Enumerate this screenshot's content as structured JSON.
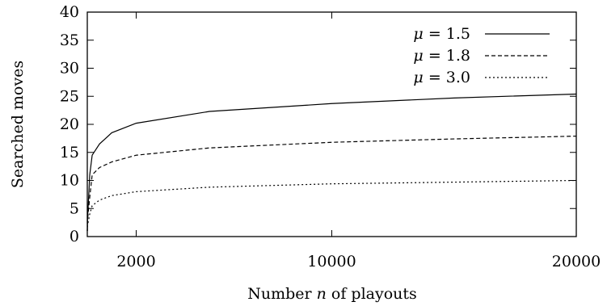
{
  "chart_data": {
    "type": "line",
    "xlabel": {
      "prefix": "Number ",
      "var": "n",
      "suffix": " of playouts"
    },
    "ylabel": "Searched moves",
    "xlim": [
      0,
      20000
    ],
    "ylim": [
      0,
      40
    ],
    "xticks": [
      2000,
      10000,
      20000
    ],
    "yticks": [
      0,
      5,
      10,
      15,
      20,
      25,
      30,
      35,
      40
    ],
    "grid": false,
    "legend_position": "top-right",
    "series": [
      {
        "name": {
          "var": "μ",
          "rest": " = 1.5"
        },
        "line_style": "solid",
        "x": [
          1,
          10,
          100,
          200,
          500,
          1000,
          2000,
          5000,
          10000,
          15000,
          20000
        ],
        "y": [
          1.0,
          3.0,
          11.0,
          14.5,
          16.5,
          18.5,
          20.2,
          22.3,
          23.7,
          24.7,
          25.4
        ]
      },
      {
        "name": {
          "var": "μ",
          "rest": " = 1.8"
        },
        "line_style": "dashed",
        "x": [
          1,
          10,
          100,
          200,
          500,
          1000,
          2000,
          5000,
          10000,
          15000,
          20000
        ],
        "y": [
          1.0,
          3.0,
          7.0,
          11.0,
          12.3,
          13.3,
          14.5,
          15.8,
          16.8,
          17.4,
          17.9
        ]
      },
      {
        "name": {
          "var": "μ",
          "rest": " = 3.0"
        },
        "line_style": "dotted",
        "x": [
          1,
          10,
          100,
          200,
          500,
          1000,
          2000,
          5000,
          10000,
          15000,
          20000
        ],
        "y": [
          1.0,
          2.0,
          4.0,
          5.5,
          6.5,
          7.3,
          8.0,
          8.8,
          9.4,
          9.7,
          10.0
        ]
      }
    ]
  }
}
